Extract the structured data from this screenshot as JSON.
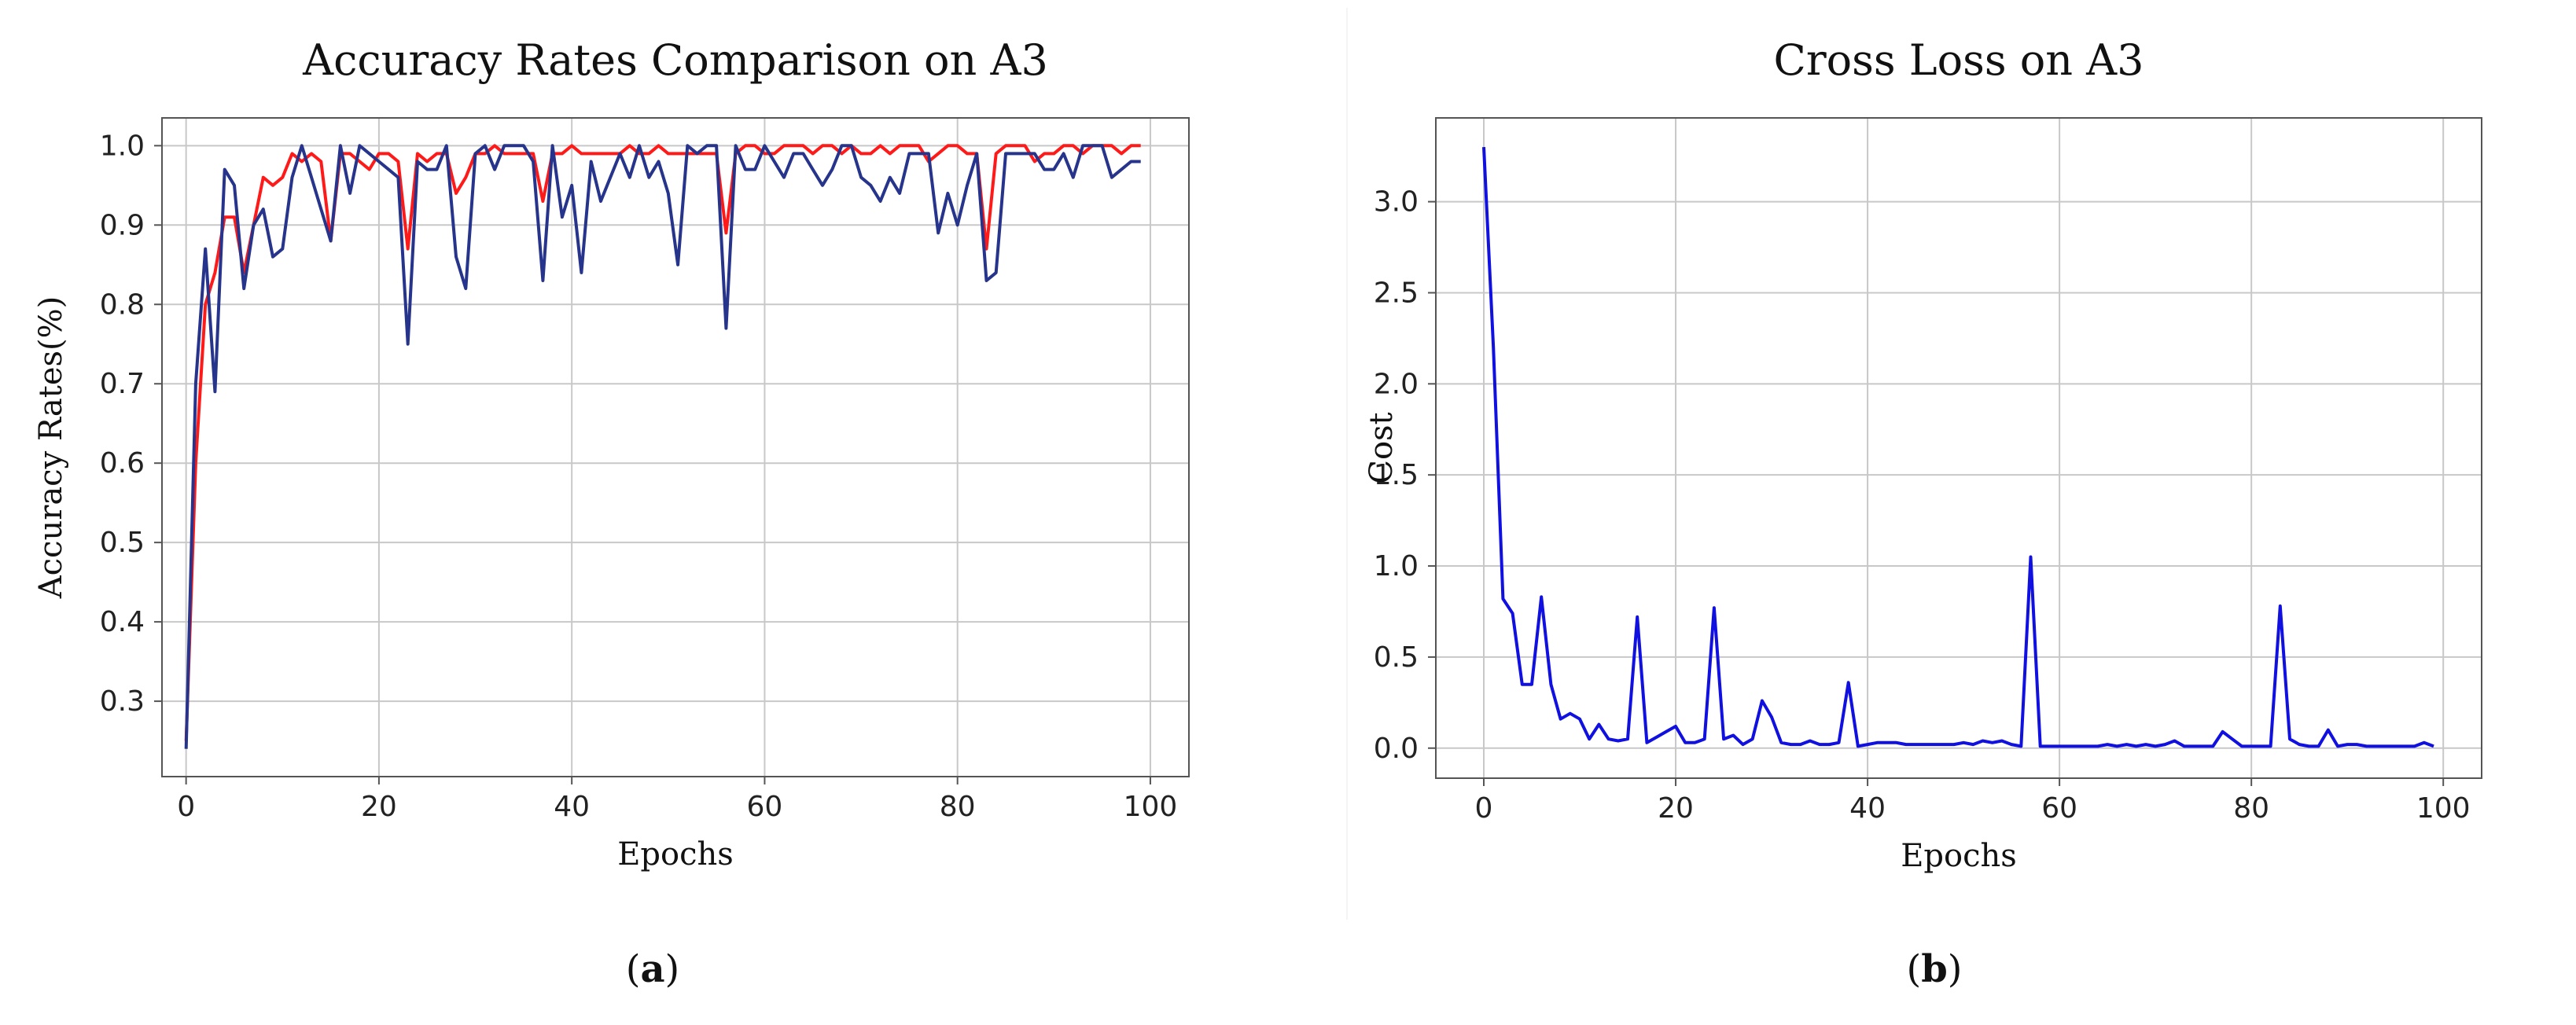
{
  "chart_data": [
    {
      "panel": "a",
      "caption_letter": "a",
      "type": "line",
      "title": "Accuracy Rates Comparison on A3",
      "xlabel": "Epochs",
      "ylabel": "Accuracy  Rates(%)",
      "xlim": [
        -2.5,
        104
      ],
      "ylim": [
        0.205,
        1.035
      ],
      "xticks": [
        0,
        20,
        40,
        60,
        80,
        100
      ],
      "yticks": [
        0.3,
        0.4,
        0.5,
        0.6,
        0.7,
        0.8,
        0.9,
        1.0
      ],
      "grid": true,
      "series": [
        {
          "color": "#ff1a1a",
          "x": [
            0,
            1,
            2,
            3,
            4,
            5,
            6,
            7,
            8,
            9,
            10,
            11,
            12,
            13,
            14,
            15,
            16,
            17,
            18,
            19,
            20,
            21,
            22,
            23,
            24,
            25,
            26,
            27,
            28,
            29,
            30,
            31,
            32,
            33,
            34,
            35,
            36,
            37,
            38,
            39,
            40,
            41,
            42,
            43,
            44,
            45,
            46,
            47,
            48,
            49,
            50,
            51,
            52,
            53,
            54,
            55,
            56,
            57,
            58,
            59,
            60,
            61,
            62,
            63,
            64,
            65,
            66,
            67,
            68,
            69,
            70,
            71,
            72,
            73,
            74,
            75,
            76,
            77,
            78,
            79,
            80,
            81,
            82,
            83,
            84,
            85,
            86,
            87,
            88,
            89,
            90,
            91,
            92,
            93,
            94,
            95,
            96,
            97,
            98,
            99
          ],
          "y": [
            0.25,
            0.6,
            0.8,
            0.84,
            0.91,
            0.91,
            0.84,
            0.9,
            0.96,
            0.95,
            0.96,
            0.99,
            0.98,
            0.99,
            0.98,
            0.88,
            0.99,
            0.99,
            0.98,
            0.97,
            0.99,
            0.99,
            0.98,
            0.87,
            0.99,
            0.98,
            0.99,
            0.99,
            0.94,
            0.96,
            0.99,
            0.99,
            1.0,
            0.99,
            0.99,
            0.99,
            0.99,
            0.93,
            0.99,
            0.99,
            1.0,
            0.99,
            0.99,
            0.99,
            0.99,
            0.99,
            1.0,
            0.99,
            0.99,
            1.0,
            0.99,
            0.99,
            0.99,
            0.99,
            0.99,
            0.99,
            0.89,
            0.99,
            1.0,
            1.0,
            0.99,
            0.99,
            1.0,
            1.0,
            1.0,
            0.99,
            1.0,
            1.0,
            0.99,
            1.0,
            0.99,
            0.99,
            1.0,
            0.99,
            1.0,
            1.0,
            1.0,
            0.98,
            0.99,
            1.0,
            1.0,
            0.99,
            0.99,
            0.87,
            0.99,
            1.0,
            1.0,
            1.0,
            0.98,
            0.99,
            0.99,
            1.0,
            1.0,
            0.99,
            1.0,
            1.0,
            1.0,
            0.99,
            1.0,
            1.0
          ]
        },
        {
          "color": "#27348b",
          "x": [
            0,
            1,
            2,
            3,
            4,
            5,
            6,
            7,
            8,
            9,
            10,
            11,
            12,
            13,
            14,
            15,
            16,
            17,
            18,
            19,
            20,
            21,
            22,
            23,
            24,
            25,
            26,
            27,
            28,
            29,
            30,
            31,
            32,
            33,
            34,
            35,
            36,
            37,
            38,
            39,
            40,
            41,
            42,
            43,
            44,
            45,
            46,
            47,
            48,
            49,
            50,
            51,
            52,
            53,
            54,
            55,
            56,
            57,
            58,
            59,
            60,
            61,
            62,
            63,
            64,
            65,
            66,
            67,
            68,
            69,
            70,
            71,
            72,
            73,
            74,
            75,
            76,
            77,
            78,
            79,
            80,
            81,
            82,
            83,
            84,
            85,
            86,
            87,
            88,
            89,
            90,
            91,
            92,
            93,
            94,
            95,
            96,
            97,
            98,
            99
          ],
          "y": [
            0.24,
            0.7,
            0.87,
            0.69,
            0.97,
            0.95,
            0.82,
            0.9,
            0.92,
            0.86,
            0.87,
            0.96,
            1.0,
            0.96,
            0.92,
            0.88,
            1.0,
            0.94,
            1.0,
            0.99,
            0.98,
            0.97,
            0.96,
            0.75,
            0.98,
            0.97,
            0.97,
            1.0,
            0.86,
            0.82,
            0.99,
            1.0,
            0.97,
            1.0,
            1.0,
            1.0,
            0.98,
            0.83,
            1.0,
            0.91,
            0.95,
            0.84,
            0.98,
            0.93,
            0.96,
            0.99,
            0.96,
            1.0,
            0.96,
            0.98,
            0.94,
            0.85,
            1.0,
            0.99,
            1.0,
            1.0,
            0.77,
            1.0,
            0.97,
            0.97,
            1.0,
            0.98,
            0.96,
            0.99,
            0.99,
            0.97,
            0.95,
            0.97,
            1.0,
            1.0,
            0.96,
            0.95,
            0.93,
            0.96,
            0.94,
            0.99,
            0.99,
            0.99,
            0.89,
            0.94,
            0.9,
            0.95,
            0.99,
            0.83,
            0.84,
            0.99,
            0.99,
            0.99,
            0.99,
            0.97,
            0.97,
            0.99,
            0.96,
            1.0,
            1.0,
            1.0,
            0.96,
            0.97,
            0.98,
            0.98
          ]
        }
      ]
    },
    {
      "panel": "b",
      "caption_letter": "b",
      "type": "line",
      "title": "Cross Loss on A3",
      "xlabel": "Epochs",
      "ylabel": "Cost",
      "xlim": [
        -5,
        104
      ],
      "ylim": [
        -0.165,
        3.46
      ],
      "xticks": [
        0,
        20,
        40,
        60,
        80,
        100
      ],
      "yticks": [
        0.0,
        0.5,
        1.0,
        1.5,
        2.0,
        2.5,
        3.0
      ],
      "ytick_labels": [
        "0.0",
        "0.5",
        "1.0",
        "1.5",
        "2.0",
        "2.5",
        "3.0"
      ],
      "grid": true,
      "series": [
        {
          "color": "#1010e0",
          "x": [
            0,
            1,
            2,
            3,
            4,
            5,
            6,
            7,
            8,
            9,
            10,
            11,
            12,
            13,
            14,
            15,
            16,
            17,
            18,
            19,
            20,
            21,
            22,
            23,
            24,
            25,
            26,
            27,
            28,
            29,
            30,
            31,
            32,
            33,
            34,
            35,
            36,
            37,
            38,
            39,
            40,
            41,
            42,
            43,
            44,
            45,
            46,
            47,
            48,
            49,
            50,
            51,
            52,
            53,
            54,
            55,
            56,
            57,
            58,
            59,
            60,
            61,
            62,
            63,
            64,
            65,
            66,
            67,
            68,
            69,
            70,
            71,
            72,
            73,
            74,
            75,
            76,
            77,
            78,
            79,
            80,
            81,
            82,
            83,
            84,
            85,
            86,
            87,
            88,
            89,
            90,
            91,
            92,
            93,
            94,
            95,
            96,
            97,
            98,
            99
          ],
          "y": [
            3.3,
            2.2,
            0.82,
            0.74,
            0.35,
            0.35,
            0.83,
            0.35,
            0.16,
            0.19,
            0.16,
            0.05,
            0.13,
            0.05,
            0.04,
            0.05,
            0.72,
            0.03,
            0.06,
            0.09,
            0.12,
            0.03,
            0.03,
            0.05,
            0.77,
            0.05,
            0.07,
            0.02,
            0.05,
            0.26,
            0.17,
            0.03,
            0.02,
            0.02,
            0.04,
            0.02,
            0.02,
            0.03,
            0.36,
            0.01,
            0.02,
            0.03,
            0.03,
            0.03,
            0.02,
            0.02,
            0.02,
            0.02,
            0.02,
            0.02,
            0.03,
            0.02,
            0.04,
            0.03,
            0.04,
            0.02,
            0.01,
            1.05,
            0.01,
            0.01,
            0.01,
            0.01,
            0.01,
            0.01,
            0.01,
            0.02,
            0.01,
            0.02,
            0.01,
            0.02,
            0.01,
            0.02,
            0.04,
            0.01,
            0.01,
            0.01,
            0.01,
            0.09,
            0.05,
            0.01,
            0.01,
            0.01,
            0.01,
            0.78,
            0.05,
            0.02,
            0.01,
            0.01,
            0.1,
            0.01,
            0.02,
            0.02,
            0.01,
            0.01,
            0.01,
            0.01,
            0.01,
            0.01,
            0.03,
            0.01
          ]
        }
      ]
    }
  ]
}
